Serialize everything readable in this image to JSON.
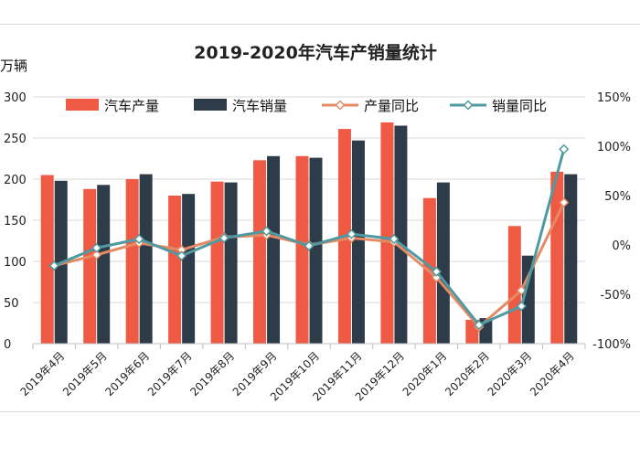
{
  "chart_data": {
    "type": "bar",
    "title": "2019-2020年汽车产销量统计",
    "ylabel": "万辆",
    "ylim": [
      0,
      300
    ],
    "y_ticks": [
      "300",
      "250",
      "200",
      "150",
      "100",
      "50",
      "0"
    ],
    "y2lim": [
      -100,
      150
    ],
    "y2_ticks": [
      "150%",
      "100%",
      "50%",
      "0%",
      "-50%",
      "-100%"
    ],
    "categories": [
      "2019年4月",
      "2019年5月",
      "2019年6月",
      "2019年7月",
      "2019年8月",
      "2019年9月",
      "2019年10月",
      "2019年11月",
      "2019年12月",
      "2020年1月",
      "2020年2月",
      "2020年3月",
      "2020年4月"
    ],
    "series": [
      {
        "name": "汽车产量",
        "type": "bar",
        "axis": "left",
        "color": "#ee5a44",
        "values": [
          205,
          188,
          200,
          180,
          197,
          223,
          228,
          261,
          269,
          177,
          29,
          143,
          209
        ]
      },
      {
        "name": "汽车销量",
        "type": "bar",
        "axis": "left",
        "color": "#2e3c4a",
        "values": [
          198,
          193,
          206,
          182,
          196,
          228,
          226,
          247,
          265,
          196,
          31,
          107,
          206
        ]
      },
      {
        "name": "产量同比",
        "type": "line",
        "axis": "right",
        "color": "#e58a65",
        "values": [
          -21,
          -10,
          2,
          -5,
          8,
          10,
          0,
          7,
          3,
          -33,
          -83,
          -46,
          43
        ]
      },
      {
        "name": "销量同比",
        "type": "line",
        "axis": "right",
        "color": "#4f9aa0",
        "values": [
          -21,
          -3,
          6,
          -11,
          7,
          14,
          -1,
          11,
          6,
          -27,
          -81,
          -62,
          97
        ]
      }
    ],
    "legend_position": "top",
    "grid": true
  }
}
